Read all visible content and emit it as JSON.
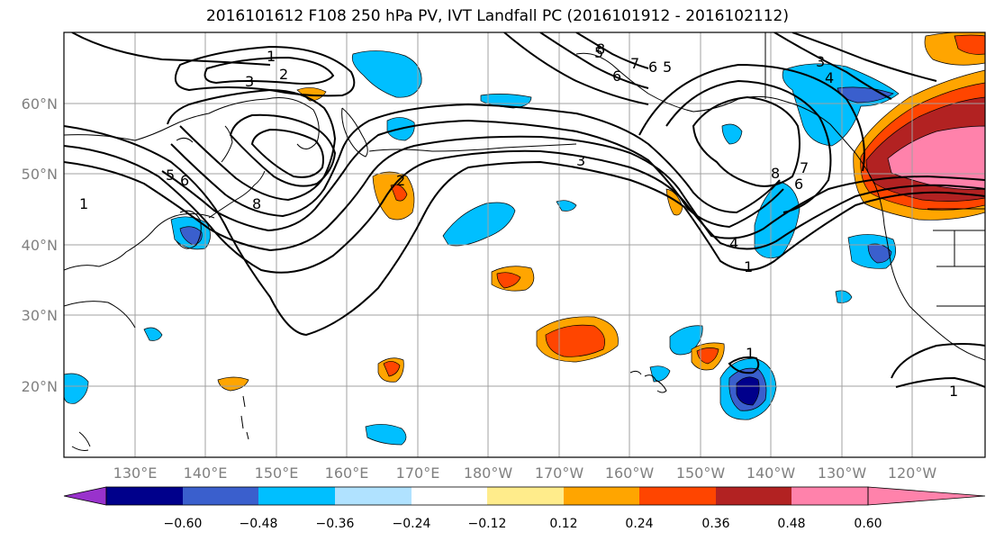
{
  "title": "2016101612 F108 250 hPa PV, IVT Landfall PC (2016101912 - 2016102112)",
  "lat_ticks": [
    "60°N",
    "50°N",
    "40°N",
    "30°N",
    "20°N"
  ],
  "lon_ticks": [
    "130°E",
    "140°E",
    "150°E",
    "160°E",
    "170°E",
    "180°W",
    "170°W",
    "160°W",
    "150°W",
    "140°W",
    "130°W",
    "120°W"
  ],
  "colorbar": {
    "ticks": [
      "−0.60",
      "−0.48",
      "−0.36",
      "−0.24",
      "−0.12",
      "0.12",
      "0.24",
      "0.36",
      "0.48",
      "0.60"
    ],
    "bins": [
      "#9932CC",
      "#00008B",
      "#3A5FCD",
      "#00BFFF",
      "#B0E2FF",
      "#FFFFFF",
      "#FFEC8B",
      "#FFA500",
      "#FF4500",
      "#B22222",
      "#FF82AB"
    ]
  },
  "contour_labels": [
    "1",
    "2",
    "3",
    "5",
    "6",
    "8",
    "7",
    "6",
    "5",
    "3",
    "4",
    "8",
    "7",
    "6",
    "4",
    "1",
    "3",
    "5",
    "6",
    "8",
    "1",
    "2",
    "1",
    "1"
  ],
  "colors": {
    "grid": "#a0a0a0",
    "contour": "#000000",
    "coast": "#000000"
  }
}
